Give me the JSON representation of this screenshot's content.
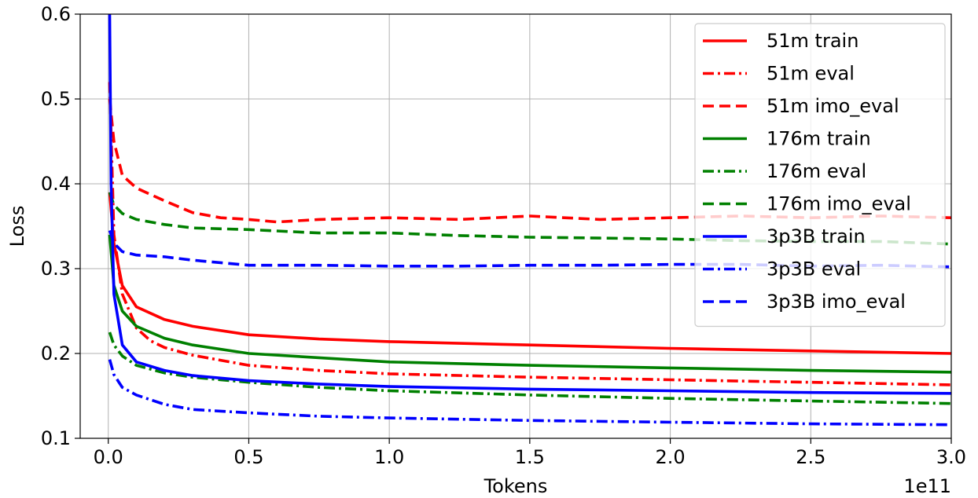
{
  "chart_data": {
    "type": "line",
    "xlabel": "Tokens",
    "ylabel": "Loss",
    "x_offset_label": "1e11",
    "xlim": [
      -0.1,
      3.0
    ],
    "ylim": [
      0.1,
      0.6
    ],
    "xticks": [
      0.0,
      0.5,
      1.0,
      1.5,
      2.0,
      2.5,
      3.0
    ],
    "xtick_labels": [
      "0.0",
      "0.5",
      "1.0",
      "1.5",
      "2.0",
      "2.5",
      "3.0"
    ],
    "yticks": [
      0.1,
      0.2,
      0.3,
      0.4,
      0.5,
      0.6
    ],
    "ytick_labels": [
      "0.1",
      "0.2",
      "0.3",
      "0.4",
      "0.5",
      "0.6"
    ],
    "grid": true,
    "legend_position": "top-right",
    "colors": {
      "red": "#ff0000",
      "green": "#008000",
      "blue": "#0000ff"
    },
    "series": [
      {
        "name": "51m train",
        "color": "red",
        "style": "solid",
        "x": [
          0.005,
          0.02,
          0.05,
          0.1,
          0.2,
          0.3,
          0.5,
          0.75,
          1.0,
          1.5,
          2.0,
          2.5,
          3.0
        ],
        "y": [
          0.39,
          0.33,
          0.28,
          0.255,
          0.24,
          0.232,
          0.222,
          0.217,
          0.214,
          0.21,
          0.206,
          0.203,
          0.2
        ]
      },
      {
        "name": "51m eval",
        "color": "red",
        "style": "dashdot",
        "x": [
          0.005,
          0.02,
          0.05,
          0.1,
          0.15,
          0.2,
          0.3,
          0.5,
          0.75,
          1.0,
          1.5,
          2.0,
          2.5,
          3.0
        ],
        "y": [
          0.52,
          0.34,
          0.27,
          0.23,
          0.215,
          0.207,
          0.198,
          0.186,
          0.18,
          0.176,
          0.172,
          0.169,
          0.166,
          0.163
        ]
      },
      {
        "name": "51m imo_eval",
        "color": "red",
        "style": "dashed",
        "x": [
          0.005,
          0.02,
          0.05,
          0.1,
          0.2,
          0.3,
          0.4,
          0.5,
          0.6,
          0.75,
          1.0,
          1.25,
          1.5,
          1.75,
          2.0,
          2.25,
          2.5,
          2.75,
          3.0
        ],
        "y": [
          0.5,
          0.45,
          0.41,
          0.395,
          0.38,
          0.366,
          0.36,
          0.358,
          0.355,
          0.358,
          0.36,
          0.358,
          0.362,
          0.358,
          0.36,
          0.362,
          0.36,
          0.362,
          0.36
        ]
      },
      {
        "name": "176m train",
        "color": "green",
        "style": "solid",
        "x": [
          0.005,
          0.02,
          0.05,
          0.1,
          0.2,
          0.3,
          0.5,
          0.75,
          1.0,
          1.5,
          2.0,
          2.5,
          3.0
        ],
        "y": [
          0.34,
          0.28,
          0.25,
          0.232,
          0.218,
          0.21,
          0.2,
          0.195,
          0.19,
          0.186,
          0.183,
          0.18,
          0.178
        ]
      },
      {
        "name": "176m eval",
        "color": "green",
        "style": "dashdot",
        "x": [
          0.005,
          0.02,
          0.05,
          0.1,
          0.2,
          0.3,
          0.5,
          0.75,
          1.0,
          1.5,
          2.0,
          2.5,
          3.0
        ],
        "y": [
          0.225,
          0.21,
          0.197,
          0.186,
          0.177,
          0.172,
          0.166,
          0.16,
          0.156,
          0.151,
          0.147,
          0.144,
          0.141
        ]
      },
      {
        "name": "176m imo_eval",
        "color": "green",
        "style": "dashed",
        "x": [
          0.005,
          0.02,
          0.05,
          0.1,
          0.2,
          0.3,
          0.5,
          0.75,
          1.0,
          1.25,
          1.5,
          1.75,
          2.0,
          2.25,
          2.5,
          2.75,
          3.0
        ],
        "y": [
          0.39,
          0.375,
          0.365,
          0.358,
          0.352,
          0.348,
          0.346,
          0.342,
          0.342,
          0.339,
          0.337,
          0.336,
          0.335,
          0.333,
          0.332,
          0.332,
          0.329
        ]
      },
      {
        "name": "3p3B train",
        "color": "blue",
        "style": "solid",
        "x": [
          0.005,
          0.01,
          0.02,
          0.05,
          0.1,
          0.2,
          0.3,
          0.5,
          0.75,
          1.0,
          1.5,
          2.0,
          2.5,
          3.0
        ],
        "y": [
          0.6,
          0.4,
          0.27,
          0.21,
          0.19,
          0.18,
          0.174,
          0.168,
          0.164,
          0.161,
          0.158,
          0.156,
          0.154,
          0.153
        ]
      },
      {
        "name": "3p3B eval",
        "color": "blue",
        "style": "dashdot",
        "x": [
          0.005,
          0.02,
          0.05,
          0.1,
          0.2,
          0.3,
          0.5,
          0.75,
          1.0,
          1.5,
          2.0,
          2.5,
          3.0
        ],
        "y": [
          0.193,
          0.175,
          0.16,
          0.151,
          0.14,
          0.134,
          0.13,
          0.126,
          0.124,
          0.121,
          0.119,
          0.117,
          0.116
        ]
      },
      {
        "name": "3p3B imo_eval",
        "color": "blue",
        "style": "dashed",
        "x": [
          0.005,
          0.02,
          0.05,
          0.1,
          0.2,
          0.3,
          0.5,
          0.75,
          1.0,
          1.25,
          1.5,
          1.75,
          2.0,
          2.25,
          2.5,
          2.75,
          3.0
        ],
        "y": [
          0.345,
          0.33,
          0.32,
          0.316,
          0.314,
          0.31,
          0.304,
          0.304,
          0.303,
          0.303,
          0.304,
          0.304,
          0.305,
          0.305,
          0.303,
          0.304,
          0.302
        ]
      }
    ]
  }
}
